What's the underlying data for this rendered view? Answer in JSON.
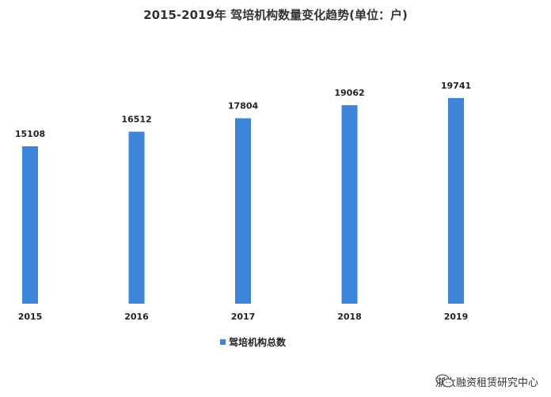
{
  "chart_data": {
    "type": "bar",
    "title": "2015-2019年 驾培机构数量变化趋势(单位：户)",
    "categories": [
      "2015",
      "2016",
      "2017",
      "2018",
      "2019"
    ],
    "series": [
      {
        "name": "驾培机构总数",
        "values": [
          15108,
          16512,
          17804,
          19062,
          19741
        ]
      }
    ],
    "xlabel": "",
    "ylabel": "",
    "ylim": [
      0,
      20500
    ],
    "grid": false,
    "legend": "bottom-center"
  },
  "colors": {
    "bar": "#3d85d8"
  },
  "watermark": {
    "text": "浙大融资租赁研究中心",
    "icon": "wechat-icon"
  }
}
